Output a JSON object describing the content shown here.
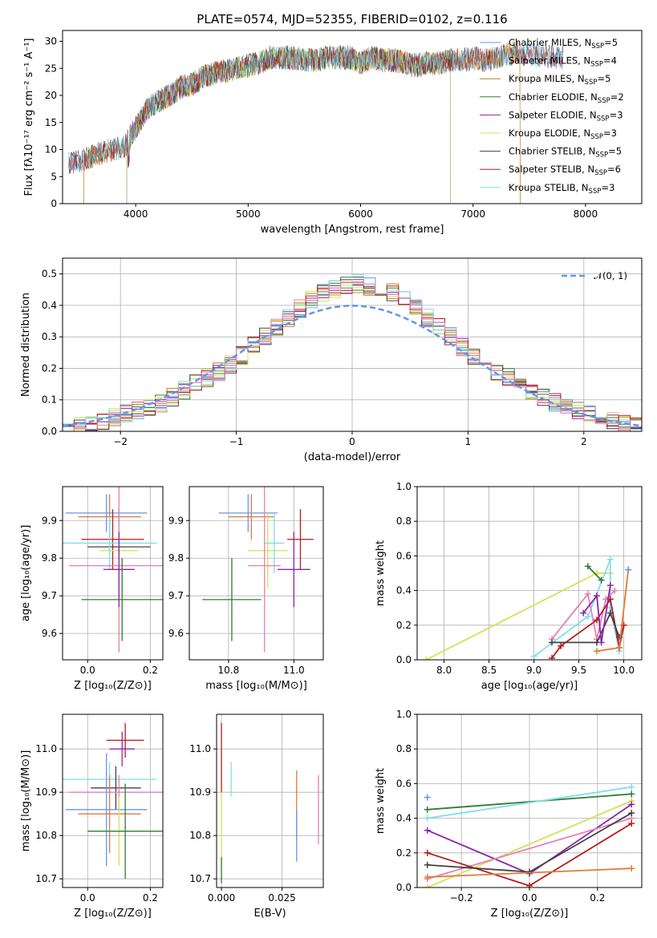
{
  "colors": {
    "chabrier_miles": "#6495ed",
    "salpeter_miles": "#e07b39",
    "kroupa_miles": "#b8860b",
    "chabrier_elodie": "#2e7d32",
    "salpeter_elodie": "#8e24aa",
    "kroupa_elodie": "#d4e157",
    "chabrier_stelib": "#424242",
    "salpeter_stelib": "#b71c1c",
    "kroupa_stelib": "#80deea",
    "pink": "#e97fb6",
    "normal": "#6495ed"
  },
  "chart_data": [
    {
      "id": "spectrum",
      "type": "line",
      "title": "PLATE=0574, MJD=52355, FIBERID=0102, z=0.116",
      "xlabel": "wavelength [Angstrom, rest frame]",
      "ylabel": "Flux [fλ10⁻¹⁷ erg cm⁻² s⁻¹ A⁻¹]",
      "xlim": [
        3350,
        8500
      ],
      "ylim": [
        0,
        32
      ],
      "xticks": [
        4000,
        5000,
        6000,
        7000,
        8000
      ],
      "yticks": [
        0,
        5,
        10,
        15,
        20,
        25,
        30
      ],
      "x": [
        3400,
        3500,
        3600,
        3700,
        3800,
        3900,
        4000,
        4100,
        4200,
        4300,
        4400,
        4500,
        4600,
        4700,
        4800,
        4900,
        5000,
        5100,
        5200,
        5300,
        5400,
        5500,
        5600,
        5700,
        5800,
        5900,
        6000,
        6100,
        6200,
        6300,
        6400,
        6500,
        6600,
        6700,
        6800,
        6900,
        7000,
        7100,
        7200,
        7300,
        7400,
        7500,
        7600,
        7700,
        7800
      ],
      "y": [
        7.5,
        8.0,
        8.5,
        9.5,
        10.0,
        10.5,
        14.0,
        17.5,
        19.0,
        20.0,
        21.5,
        22.0,
        23.5,
        24.0,
        24.5,
        25.0,
        25.5,
        26.0,
        27.0,
        27.0,
        27.0,
        26.5,
        26.5,
        27.0,
        27.0,
        27.0,
        26.0,
        27.0,
        26.5,
        26.5,
        26.0,
        25.5,
        26.0,
        26.0,
        26.5,
        26.5,
        27.0,
        26.5,
        27.0,
        27.5,
        28.0,
        27.5,
        27.5,
        27.0,
        27.0
      ],
      "series": [
        {
          "name": "Chabrier MILES, N",
          "sub": "SSP",
          "suffix": "=5",
          "color": "#6495ed",
          "range": [
            3400,
            7800
          ]
        },
        {
          "name": "Salpeter MILES, N",
          "sub": "SSP",
          "suffix": "=4",
          "color": "#e07b39",
          "range": [
            3540,
            7420
          ]
        },
        {
          "name": "Kroupa MILES, N",
          "sub": "SSP",
          "suffix": "=5",
          "color": "#b8860b",
          "range": [
            3540,
            7420
          ]
        },
        {
          "name": "Chabrier ELODIE, N",
          "sub": "SSP",
          "suffix": "=2",
          "color": "#2e7d32",
          "range": [
            3920,
            6800
          ]
        },
        {
          "name": "Salpeter ELODIE, N",
          "sub": "SSP",
          "suffix": "=3",
          "color": "#8e24aa",
          "range": [
            3920,
            6800
          ]
        },
        {
          "name": "Kroupa ELODIE, N",
          "sub": "SSP",
          "suffix": "=3",
          "color": "#d4e157",
          "range": [
            3920,
            6800
          ]
        },
        {
          "name": "Chabrier STELIB, N",
          "sub": "SSP",
          "suffix": "=5",
          "color": "#424242",
          "range": [
            3400,
            7800
          ]
        },
        {
          "name": "Salpeter STELIB, N",
          "sub": "SSP",
          "suffix": "=6",
          "color": "#b71c1c",
          "range": [
            3400,
            7800
          ]
        },
        {
          "name": "Kroupa STELIB, N",
          "sub": "SSP",
          "suffix": "=3",
          "color": "#80deea",
          "range": [
            3400,
            7800
          ]
        }
      ]
    },
    {
      "id": "residuals",
      "type": "line",
      "xlabel": "(data-model)/error",
      "ylabel": "Normed distribution",
      "xlim": [
        -2.5,
        2.5
      ],
      "ylim": [
        0,
        0.55
      ],
      "xticks": [
        -2,
        -1,
        0,
        1,
        2
      ],
      "yticks": [
        0.0,
        0.1,
        0.2,
        0.3,
        0.4,
        0.5
      ],
      "grid": true,
      "legend": {
        "label": "𝒩(0, 1)",
        "placement": "top-right"
      },
      "bin_width": 0.1,
      "bin_start": -2.5,
      "values": [
        0.015,
        0.02,
        0.025,
        0.035,
        0.045,
        0.055,
        0.065,
        0.075,
        0.09,
        0.11,
        0.13,
        0.15,
        0.17,
        0.19,
        0.21,
        0.24,
        0.27,
        0.3,
        0.33,
        0.36,
        0.39,
        0.42,
        0.44,
        0.45,
        0.46,
        0.47,
        0.46,
        0.45,
        0.44,
        0.42,
        0.39,
        0.36,
        0.33,
        0.3,
        0.27,
        0.24,
        0.21,
        0.19,
        0.17,
        0.15,
        0.13,
        0.11,
        0.09,
        0.075,
        0.065,
        0.055,
        0.045,
        0.035,
        0.025,
        0.02
      ]
    },
    {
      "id": "age_vs_Z",
      "type": "scatter",
      "xlabel": "Z [log₁₀(Z/Z⊙)]",
      "ylabel": "age  [log₁₀(age/yr)]",
      "xlim": [
        -0.08,
        0.24
      ],
      "ylim": [
        9.53,
        9.99
      ],
      "xticks": [
        0.0,
        0.2
      ],
      "yticks": [
        9.6,
        9.7,
        9.8,
        9.9
      ],
      "grid": true,
      "points": [
        {
          "x": 0.06,
          "y": 9.92,
          "xerr": 0.13,
          "yerr": 0.05,
          "color": "#6495ed"
        },
        {
          "x": 0.07,
          "y": 9.91,
          "xerr": 0.1,
          "yerr": 0.06,
          "color": "#e07b39"
        },
        {
          "x": 0.08,
          "y": 9.85,
          "xerr": 0.1,
          "yerr": 0.08,
          "color": "#b71c1c"
        },
        {
          "x": 0.1,
          "y": 9.83,
          "xerr": 0.1,
          "yerr": 0.1,
          "color": "#424242"
        },
        {
          "x": 0.1,
          "y": 9.82,
          "xerr": 0.06,
          "yerr": 0.07,
          "color": "#d4e157"
        },
        {
          "x": 0.07,
          "y": 9.84,
          "xerr": 0.15,
          "yerr": 0.07,
          "color": "#80deea"
        },
        {
          "x": 0.1,
          "y": 9.78,
          "xerr": 0.16,
          "yerr": 0.23,
          "color": "#e97fb6"
        },
        {
          "x": 0.1,
          "y": 9.77,
          "xerr": 0.05,
          "yerr": 0.1,
          "color": "#8e24aa"
        },
        {
          "x": 0.11,
          "y": 9.69,
          "xerr": 0.13,
          "yerr": 0.11,
          "color": "#2e7d32"
        }
      ]
    },
    {
      "id": "age_vs_mass",
      "type": "scatter",
      "xlabel": "mass [log₁₀(M/M⊙)]",
      "xlim": [
        10.68,
        11.09
      ],
      "ylim": [
        9.53,
        9.99
      ],
      "xticks": [
        10.8,
        11.0
      ],
      "yticks": [
        9.6,
        9.7,
        9.8,
        9.9
      ],
      "grid": true,
      "points": [
        {
          "x": 10.86,
          "y": 9.92,
          "xerr": 0.09,
          "yerr": 0.05,
          "color": "#6495ed"
        },
        {
          "x": 10.87,
          "y": 9.91,
          "xerr": 0.07,
          "yerr": 0.06,
          "color": "#e07b39"
        },
        {
          "x": 11.02,
          "y": 9.85,
          "xerr": 0.04,
          "yerr": 0.08,
          "color": "#b71c1c"
        },
        {
          "x": 10.92,
          "y": 9.82,
          "xerr": 0.06,
          "yerr": 0.1,
          "color": "#d4e157"
        },
        {
          "x": 10.94,
          "y": 9.84,
          "xerr": 0.03,
          "yerr": 0.08,
          "color": "#80deea"
        },
        {
          "x": 10.91,
          "y": 9.78,
          "xerr": 0.05,
          "yerr": 0.23,
          "color": "#e97fb6"
        },
        {
          "x": 11.0,
          "y": 9.77,
          "xerr": 0.05,
          "yerr": 0.1,
          "color": "#8e24aa"
        },
        {
          "x": 10.81,
          "y": 9.69,
          "xerr": 0.09,
          "yerr": 0.11,
          "color": "#2e7d32"
        }
      ]
    },
    {
      "id": "weight_vs_age",
      "type": "line",
      "xlabel": "age  [log₁₀(age/yr)]",
      "ylabel": "mass weight",
      "xlim": [
        7.7,
        10.2
      ],
      "ylim": [
        0,
        1
      ],
      "xticks": [
        8.0,
        8.5,
        9.0,
        9.5,
        10.0
      ],
      "yticks": [
        0.0,
        0.2,
        0.4,
        0.6,
        0.8,
        1.0
      ],
      "grid": true,
      "series": [
        {
          "color": "#d4e157",
          "x": [
            7.8,
            9.7,
            9.85
          ],
          "y": [
            0.0,
            0.5,
            0.5
          ]
        },
        {
          "color": "#80deea",
          "x": [
            9.0,
            9.6,
            9.85,
            9.85,
            9.95
          ],
          "y": [
            0.02,
            0.25,
            0.58,
            0.3,
            0.05
          ]
        },
        {
          "color": "#e97fb6",
          "x": [
            9.2,
            9.6,
            9.7,
            9.8,
            9.9
          ],
          "y": [
            0.12,
            0.38,
            0.12,
            0.35,
            0.4
          ]
        },
        {
          "color": "#b71c1c",
          "x": [
            9.2,
            9.3,
            9.7,
            9.85,
            9.95,
            10.0
          ],
          "y": [
            0.01,
            0.08,
            0.23,
            0.35,
            0.07,
            0.2
          ]
        },
        {
          "color": "#424242",
          "x": [
            9.2,
            9.7,
            9.85,
            9.95
          ],
          "y": [
            0.1,
            0.1,
            0.27,
            0.13
          ]
        },
        {
          "color": "#8e24aa",
          "x": [
            9.55,
            9.7,
            9.75,
            9.85
          ],
          "y": [
            0.27,
            0.37,
            0.1,
            0.43
          ]
        },
        {
          "color": "#2e7d32",
          "x": [
            9.6,
            9.75
          ],
          "y": [
            0.54,
            0.46
          ]
        },
        {
          "color": "#e07b39",
          "x": [
            9.7,
            9.95,
            10.05
          ],
          "y": [
            0.05,
            0.07,
            0.52
          ]
        },
        {
          "color": "#6495ed",
          "x": [
            10.05
          ],
          "y": [
            0.52
          ]
        }
      ]
    },
    {
      "id": "mass_vs_Z",
      "type": "scatter",
      "xlabel": "Z [log₁₀(Z/Z⊙)]",
      "ylabel": "mass [log₁₀(M/M⊙)]",
      "xlim": [
        -0.08,
        0.24
      ],
      "ylim": [
        10.68,
        11.08
      ],
      "xticks": [
        0.0,
        0.2
      ],
      "yticks": [
        10.7,
        10.8,
        10.9,
        11.0
      ],
      "grid": true,
      "points": [
        {
          "x": 0.12,
          "y": 11.02,
          "xerr": 0.06,
          "yerr": 0.04,
          "color": "#b71c1c"
        },
        {
          "x": 0.11,
          "y": 11.0,
          "xerr": 0.04,
          "yerr": 0.04,
          "color": "#8e24aa"
        },
        {
          "x": 0.07,
          "y": 10.93,
          "xerr": 0.15,
          "yerr": 0.04,
          "color": "#80deea"
        },
        {
          "x": 0.09,
          "y": 10.91,
          "xerr": 0.08,
          "yerr": 0.05,
          "color": "#424242"
        },
        {
          "x": 0.1,
          "y": 10.9,
          "xerr": 0.16,
          "yerr": 0.04,
          "color": "#e97fb6"
        },
        {
          "x": 0.06,
          "y": 10.86,
          "xerr": 0.13,
          "yerr": 0.13,
          "color": "#6495ed"
        },
        {
          "x": 0.07,
          "y": 10.85,
          "xerr": 0.1,
          "yerr": 0.09,
          "color": "#e07b39"
        },
        {
          "x": 0.1,
          "y": 10.81,
          "xerr": 0.07,
          "yerr": 0.08,
          "color": "#d4e157"
        },
        {
          "x": 0.12,
          "y": 10.81,
          "xerr": 0.12,
          "yerr": 0.11,
          "color": "#2e7d32"
        }
      ]
    },
    {
      "id": "mass_vs_ebv",
      "type": "scatter",
      "xlabel": "E(B-V)",
      "xlim": [
        -0.002,
        0.042
      ],
      "ylim": [
        10.68,
        11.08
      ],
      "xticks": [
        0.0,
        0.025
      ],
      "yticks": [
        10.7,
        10.8,
        10.9,
        11.0
      ],
      "grid": true,
      "points": [
        {
          "x": 0.0,
          "y": 10.98,
          "yerr": 0.08,
          "color": "#b71c1c"
        },
        {
          "x": 0.0,
          "y": 10.8,
          "yerr": 0.1,
          "color": "#d4e157"
        },
        {
          "x": 0.0,
          "y": 10.72,
          "yerr": 0.03,
          "color": "#2e7d32"
        },
        {
          "x": 0.004,
          "y": 10.93,
          "yerr": 0.04,
          "color": "#80deea"
        },
        {
          "x": 0.031,
          "y": 10.87,
          "yerr": 0.08,
          "color": "#e07b39"
        },
        {
          "x": 0.031,
          "y": 10.8,
          "yerr": 0.06,
          "color": "#6495ed"
        },
        {
          "x": 0.04,
          "y": 10.86,
          "yerr": 0.08,
          "color": "#e97fb6"
        }
      ]
    },
    {
      "id": "weight_vs_Z",
      "type": "line",
      "xlabel": "Z [log₁₀(Z/Z⊙)]",
      "ylabel": "mass weight",
      "xlim": [
        -0.33,
        0.33
      ],
      "ylim": [
        0,
        1
      ],
      "xticks": [
        -0.2,
        0.0,
        0.2
      ],
      "yticks": [
        0.0,
        0.2,
        0.4,
        0.6,
        0.8,
        1.0
      ],
      "grid": true,
      "series": [
        {
          "color": "#2e7d32",
          "x": [
            -0.3,
            0.3
          ],
          "y": [
            0.45,
            0.54
          ]
        },
        {
          "color": "#80deea",
          "x": [
            -0.3,
            0.3
          ],
          "y": [
            0.4,
            0.58
          ]
        },
        {
          "color": "#d4e157",
          "x": [
            -0.3,
            0.3
          ],
          "y": [
            0.0,
            0.5
          ]
        },
        {
          "color": "#8e24aa",
          "x": [
            -0.3,
            0.0,
            0.3
          ],
          "y": [
            0.33,
            0.08,
            0.48
          ]
        },
        {
          "color": "#e97fb6",
          "x": [
            -0.3,
            0.3
          ],
          "y": [
            0.05,
            0.4
          ]
        },
        {
          "color": "#b71c1c",
          "x": [
            -0.3,
            0.0,
            0.3
          ],
          "y": [
            0.2,
            0.01,
            0.37
          ]
        },
        {
          "color": "#424242",
          "x": [
            -0.3,
            0.0,
            0.3
          ],
          "y": [
            0.13,
            0.09,
            0.43
          ]
        },
        {
          "color": "#e07b39",
          "x": [
            -0.3,
            0.3
          ],
          "y": [
            0.06,
            0.11
          ]
        },
        {
          "color": "#6495ed",
          "x": [
            -0.3
          ],
          "y": [
            0.52
          ]
        }
      ]
    }
  ]
}
